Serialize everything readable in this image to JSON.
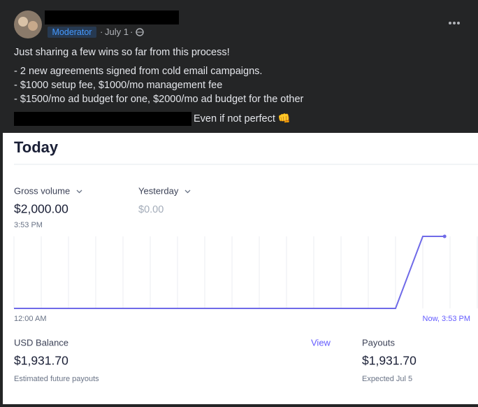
{
  "post": {
    "badge": "Moderator",
    "date": "July 1",
    "lines": [
      "Just sharing a few wins so far from this process!",
      "- 2 new agreements signed from cold email campaigns.",
      "- $1000 setup fee, $1000/mo management fee",
      "- $1500/mo ad budget for one, $2000/mo ad budget for the other",
      "Even if not perfect 👊"
    ]
  },
  "dashboard": {
    "title": "Today",
    "gross_label": "Gross volume",
    "gross_value": "$2,000.00",
    "gross_time": "3:53 PM",
    "compare_label": "Yesterday",
    "compare_value": "$0.00",
    "balance_label": "USD Balance",
    "balance_link": "View",
    "balance_value": "$1,931.70",
    "balance_note": "Estimated future payouts",
    "payouts_label": "Payouts",
    "payouts_value": "$1,931.70",
    "payouts_note": "Expected Jul 5"
  },
  "chart": {
    "type": "line",
    "x": [
      0,
      14,
      15,
      15.8
    ],
    "values": [
      0,
      0,
      2000,
      2000
    ],
    "xlim": [
      0,
      17
    ],
    "ylim": [
      0,
      2000
    ],
    "xticks": [
      0,
      1,
      2,
      3,
      4,
      5,
      6,
      7,
      8,
      9,
      10,
      11,
      12,
      13,
      14,
      15,
      16,
      17
    ],
    "color": "#6f6ae8",
    "start_label": "12:00 AM",
    "end_label": "Now, 3:53 PM"
  }
}
